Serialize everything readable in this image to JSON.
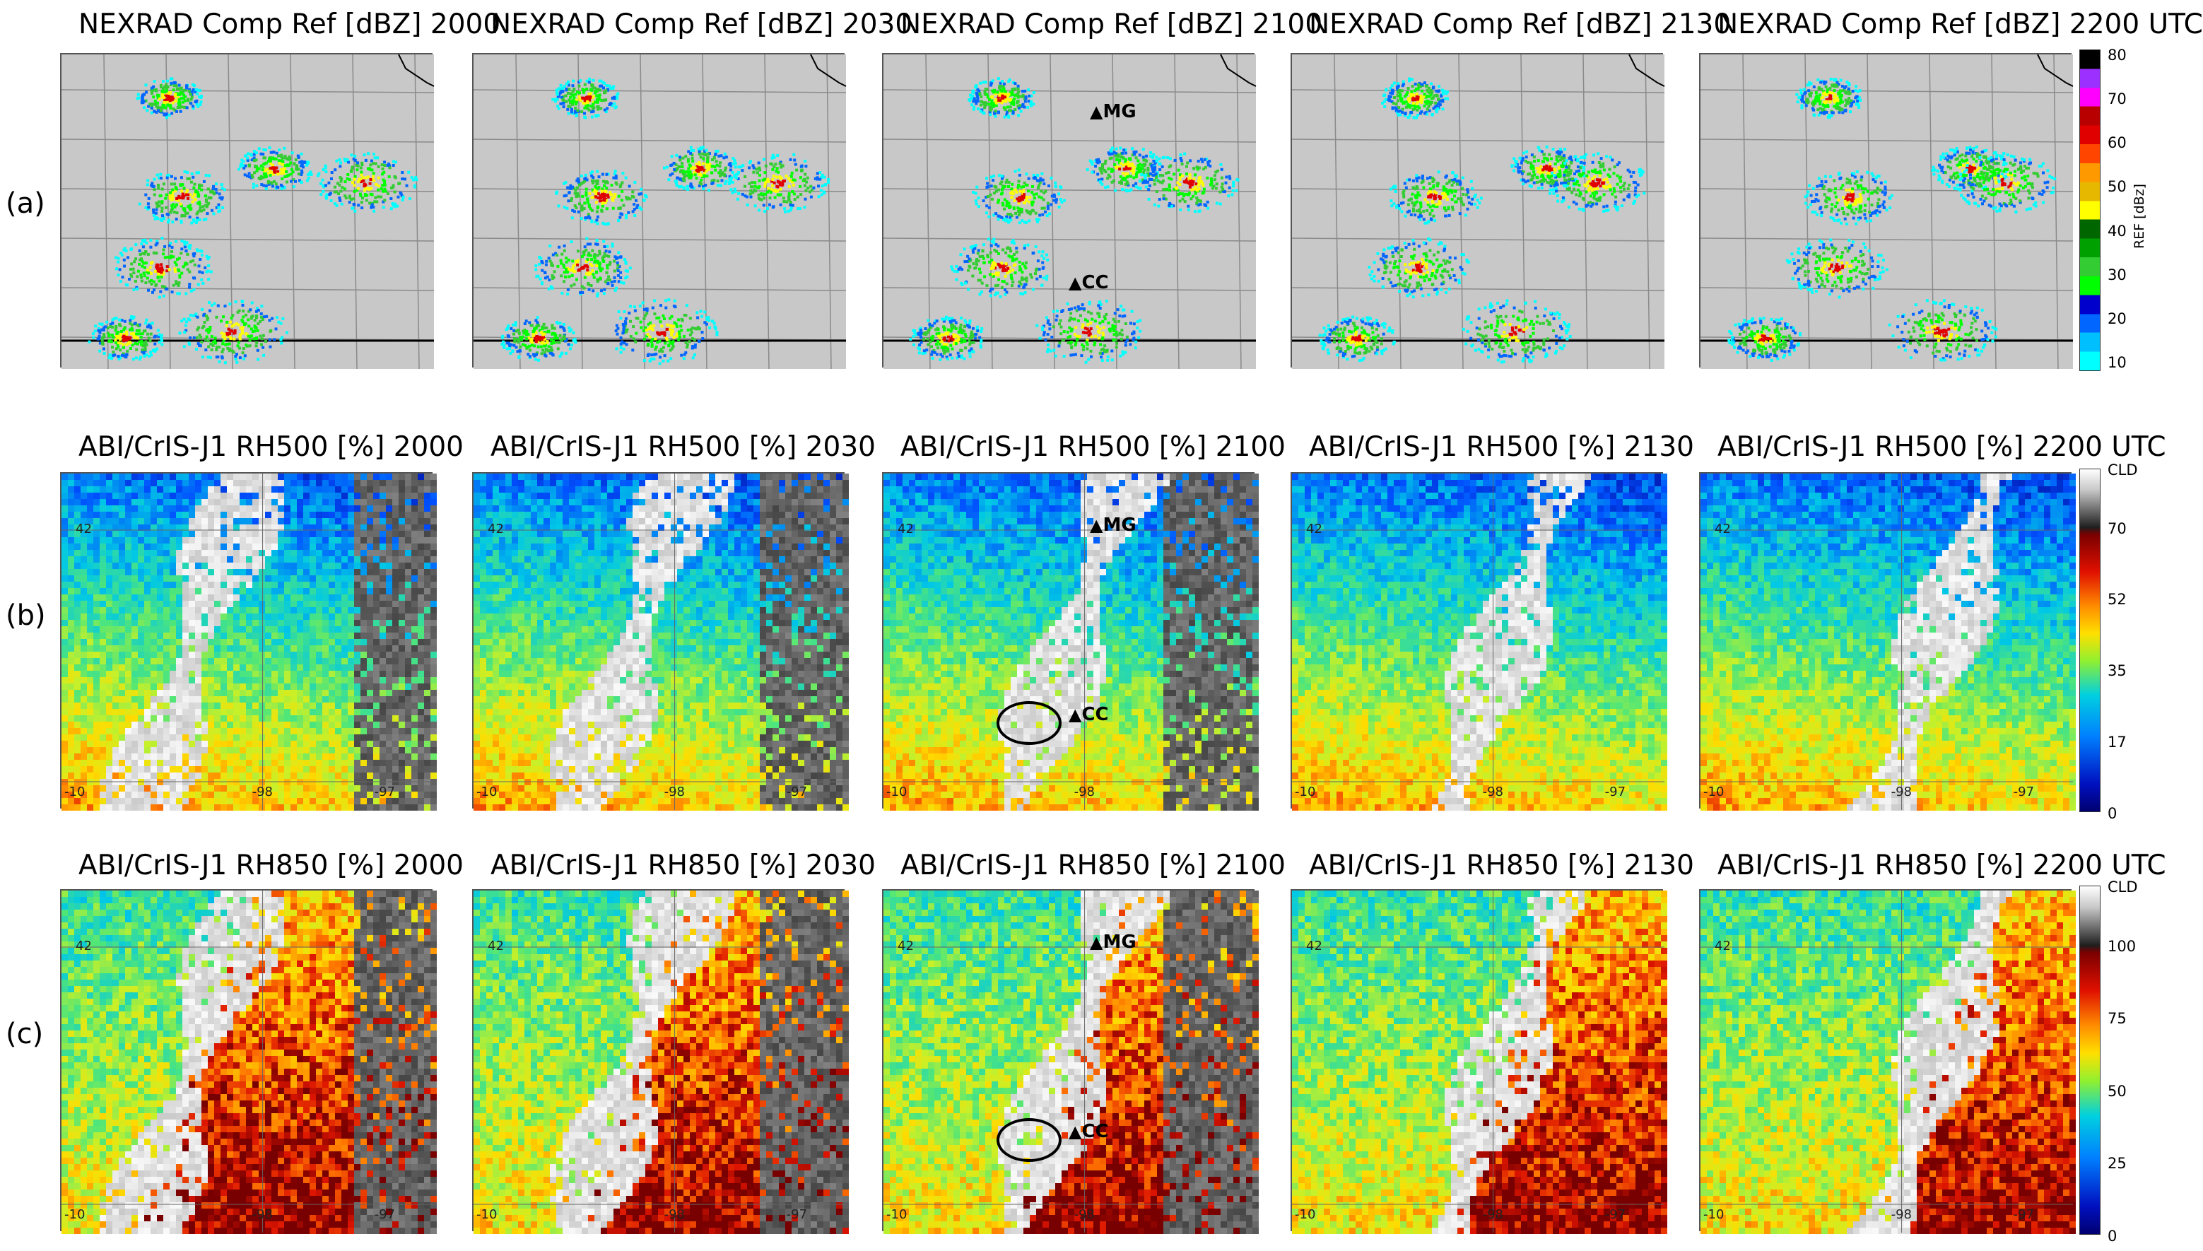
{
  "rows": [
    {
      "label": "(a)",
      "kind": "radar",
      "titles": [
        "NEXRAD Comp Ref [dBZ]  2000",
        "NEXRAD Comp Ref [dBZ]  2030",
        "NEXRAD Comp Ref [dBZ]  2100",
        "NEXRAD Comp Ref [dBZ]  2130",
        "NEXRAD Comp Ref [dBZ]  2200 UTC"
      ],
      "colorbar": {
        "ticks": [
          "80",
          "70",
          "60",
          "50",
          "40",
          "30",
          "20",
          "10"
        ],
        "unit": "REF [dBz]",
        "colors": [
          "#000000",
          "#9b30ff",
          "#ff00ff",
          "#b80000",
          "#e00000",
          "#ff4500",
          "#ff9900",
          "#e6b800",
          "#ffff00",
          "#006600",
          "#00a000",
          "#33cc33",
          "#00ff00",
          "#0000cc",
          "#0066ff",
          "#00bfff",
          "#00ffff"
        ]
      }
    },
    {
      "label": "(b)",
      "kind": "rh",
      "titles": [
        "ABI/CrIS-J1 RH500 [%]  2000",
        "ABI/CrIS-J1 RH500 [%]  2030",
        "ABI/CrIS-J1 RH500 [%]  2100",
        "ABI/CrIS-J1 RH500 [%]  2130",
        "ABI/CrIS-J1 RH500 [%]  2200 UTC"
      ],
      "colorbar": {
        "ticks": [
          "CLD",
          "70",
          "52",
          "35",
          "17",
          "0"
        ]
      }
    },
    {
      "label": "(c)",
      "kind": "rh",
      "titles": [
        "ABI/CrIS-J1 RH850 [%]  2000",
        "ABI/CrIS-J1 RH850 [%]  2030",
        "ABI/CrIS-J1 RH850 [%]  2100",
        "ABI/CrIS-J1 RH850 [%]  2130",
        "ABI/CrIS-J1 RH850 [%]  2200 UTC"
      ],
      "colorbar": {
        "ticks": [
          "CLD",
          "100",
          "75",
          "50",
          "25",
          "0"
        ]
      }
    }
  ],
  "markers": {
    "mg": "MG",
    "cc": "CC"
  },
  "grid_labels": {
    "lat": "42",
    "lon_a": "-98",
    "lon_b": "-97",
    "lon_c": "-10"
  },
  "colors": {
    "map_bg": "#c8c8c8",
    "cloud_light": "#f0f0f0",
    "cloud_dark": "#3c3c3c"
  }
}
